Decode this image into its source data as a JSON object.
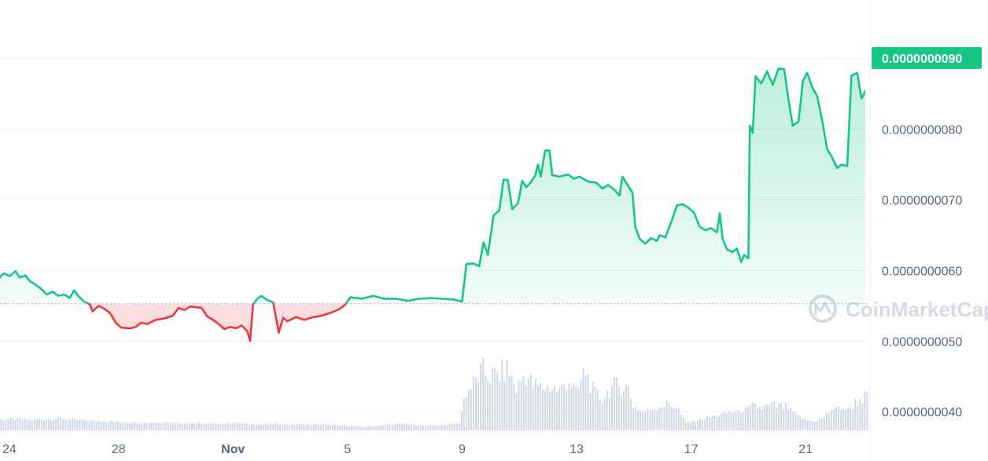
{
  "watermark": {
    "text": "CoinMarketCap",
    "icon": "coinmarketcap-logo-icon"
  },
  "colors": {
    "up": "#16c784",
    "down": "#ea3943",
    "label_bg": "#16c784",
    "grid": "#eff2f5",
    "volume": "#cfd6e4",
    "baseline": "#a6b0c3"
  },
  "chart_data": {
    "type": "line",
    "y_ticks": [
      "0.0000000040",
      "0.0000000050",
      "0.0000000060",
      "0.0000000070",
      "0.0000000080",
      "0.0000000090"
    ],
    "y_tick_values": [
      4e-09,
      5e-09,
      6e-09,
      7e-09,
      8e-09,
      9e-09
    ],
    "ylim": [
      3.88e-09,
      9.72e-09
    ],
    "x_ticks": [
      {
        "label": "24",
        "day": 0,
        "bold": false
      },
      {
        "label": "28",
        "day": 4,
        "bold": false
      },
      {
        "label": "Nov",
        "day": 8,
        "bold": true
      },
      {
        "label": "5",
        "day": 12,
        "bold": false
      },
      {
        "label": "9",
        "day": 16,
        "bold": false
      },
      {
        "label": "13",
        "day": 20,
        "bold": false
      },
      {
        "label": "17",
        "day": 24,
        "bold": false
      },
      {
        "label": "21",
        "day": 28,
        "bold": false
      }
    ],
    "baseline_value": 5.53e-09,
    "last_price_label": "0.0000000090",
    "last_price_value": 9.01e-09,
    "series": [
      {
        "values_by_day": [
          [
            -0.6,
            5.56e-09
          ],
          [
            -0.4,
            5.72e-09
          ],
          [
            -0.2,
            5.88e-09
          ],
          [
            0.0,
            5.96e-09
          ],
          [
            0.2,
            5.92e-09
          ],
          [
            0.4,
            5.99e-09
          ],
          [
            0.55,
            5.9e-09
          ],
          [
            0.75,
            5.93e-09
          ],
          [
            0.9,
            5.85e-09
          ],
          [
            1.1,
            5.8e-09
          ],
          [
            1.3,
            5.74e-09
          ],
          [
            1.5,
            5.66e-09
          ],
          [
            1.7,
            5.7e-09
          ],
          [
            1.9,
            5.64e-09
          ],
          [
            2.1,
            5.66e-09
          ],
          [
            2.3,
            5.61e-09
          ],
          [
            2.45,
            5.72e-09
          ],
          [
            2.6,
            5.64e-09
          ],
          [
            2.8,
            5.56e-09
          ],
          [
            3.0,
            5.52e-09
          ],
          [
            3.1,
            5.42e-09
          ],
          [
            3.3,
            5.5e-09
          ],
          [
            3.5,
            5.46e-09
          ],
          [
            3.7,
            5.4e-09
          ],
          [
            3.9,
            5.26e-09
          ],
          [
            4.1,
            5.19e-09
          ],
          [
            4.4,
            5.18e-09
          ],
          [
            4.6,
            5.2e-09
          ],
          [
            4.8,
            5.26e-09
          ],
          [
            5.0,
            5.24e-09
          ],
          [
            5.3,
            5.3e-09
          ],
          [
            5.6,
            5.32e-09
          ],
          [
            5.9,
            5.36e-09
          ],
          [
            6.1,
            5.47e-09
          ],
          [
            6.3,
            5.44e-09
          ],
          [
            6.5,
            5.49e-09
          ],
          [
            6.7,
            5.48e-09
          ],
          [
            6.9,
            5.47e-09
          ],
          [
            7.1,
            5.35e-09
          ],
          [
            7.3,
            5.3e-09
          ],
          [
            7.5,
            5.24e-09
          ],
          [
            7.7,
            5.17e-09
          ],
          [
            7.9,
            5.2e-09
          ],
          [
            8.1,
            5.18e-09
          ],
          [
            8.3,
            5.22e-09
          ],
          [
            8.5,
            5.14e-09
          ],
          [
            8.6,
            5e-09
          ],
          [
            8.7,
            5.52e-09
          ],
          [
            8.85,
            5.6e-09
          ],
          [
            9.0,
            5.64e-09
          ],
          [
            9.2,
            5.58e-09
          ],
          [
            9.4,
            5.55e-09
          ],
          [
            9.6,
            5.12e-09
          ],
          [
            9.75,
            5.33e-09
          ],
          [
            9.9,
            5.28e-09
          ],
          [
            10.2,
            5.34e-09
          ],
          [
            10.5,
            5.3e-09
          ],
          [
            10.8,
            5.34e-09
          ],
          [
            11.1,
            5.36e-09
          ],
          [
            11.4,
            5.4e-09
          ],
          [
            11.7,
            5.45e-09
          ],
          [
            11.9,
            5.51e-09
          ],
          [
            12.1,
            5.62e-09
          ],
          [
            12.5,
            5.6e-09
          ],
          [
            12.9,
            5.64e-09
          ],
          [
            13.3,
            5.6e-09
          ],
          [
            13.7,
            5.6e-09
          ],
          [
            14.1,
            5.57e-09
          ],
          [
            14.5,
            5.6e-09
          ],
          [
            14.9,
            5.61e-09
          ],
          [
            15.3,
            5.6e-09
          ],
          [
            15.7,
            5.59e-09
          ],
          [
            16.0,
            5.56e-09
          ],
          [
            16.15,
            6.09e-09
          ],
          [
            16.4,
            6.1e-09
          ],
          [
            16.6,
            6.06e-09
          ],
          [
            16.75,
            6.4e-09
          ],
          [
            16.9,
            6.22e-09
          ],
          [
            17.1,
            6.78e-09
          ],
          [
            17.3,
            6.85e-09
          ],
          [
            17.45,
            7.29e-09
          ],
          [
            17.6,
            7.28e-09
          ],
          [
            17.75,
            6.87e-09
          ],
          [
            17.95,
            6.95e-09
          ],
          [
            18.1,
            7.27e-09
          ],
          [
            18.25,
            7.18e-09
          ],
          [
            18.4,
            7.25e-09
          ],
          [
            18.55,
            7.34e-09
          ],
          [
            18.65,
            7.5e-09
          ],
          [
            18.75,
            7.33e-09
          ],
          [
            18.9,
            7.7e-09
          ],
          [
            19.05,
            7.7e-09
          ],
          [
            19.15,
            7.35e-09
          ],
          [
            19.4,
            7.33e-09
          ],
          [
            19.7,
            7.36e-09
          ],
          [
            19.9,
            7.3e-09
          ],
          [
            20.1,
            7.33e-09
          ],
          [
            20.4,
            7.26e-09
          ],
          [
            20.7,
            7.24e-09
          ],
          [
            20.9,
            7.16e-09
          ],
          [
            21.1,
            7.21e-09
          ],
          [
            21.3,
            7.15e-09
          ],
          [
            21.5,
            7.06e-09
          ],
          [
            21.6,
            7.33e-09
          ],
          [
            21.8,
            7.2e-09
          ],
          [
            21.95,
            7.1e-09
          ],
          [
            22.05,
            6.62e-09
          ],
          [
            22.2,
            6.45e-09
          ],
          [
            22.4,
            6.38e-09
          ],
          [
            22.6,
            6.46e-09
          ],
          [
            22.8,
            6.42e-09
          ],
          [
            22.9,
            6.5e-09
          ],
          [
            23.1,
            6.47e-09
          ],
          [
            23.3,
            6.68e-09
          ],
          [
            23.5,
            6.92e-09
          ],
          [
            23.7,
            6.94e-09
          ],
          [
            23.9,
            6.89e-09
          ],
          [
            24.1,
            6.82e-09
          ],
          [
            24.3,
            6.62e-09
          ],
          [
            24.5,
            6.57e-09
          ],
          [
            24.7,
            6.6e-09
          ],
          [
            24.9,
            6.54e-09
          ],
          [
            25.0,
            6.81e-09
          ],
          [
            25.1,
            6.45e-09
          ],
          [
            25.25,
            6.3e-09
          ],
          [
            25.45,
            6.26e-09
          ],
          [
            25.6,
            6.31e-09
          ],
          [
            25.75,
            6.12e-09
          ],
          [
            25.85,
            6.22e-09
          ],
          [
            26.0,
            6.17e-09
          ],
          [
            26.05,
            8.05e-09
          ],
          [
            26.15,
            7.95e-09
          ],
          [
            26.25,
            8.75e-09
          ],
          [
            26.45,
            8.65e-09
          ],
          [
            26.65,
            8.82e-09
          ],
          [
            26.85,
            8.63e-09
          ],
          [
            27.05,
            8.86e-09
          ],
          [
            27.25,
            8.85e-09
          ],
          [
            27.4,
            8.42e-09
          ],
          [
            27.55,
            8.05e-09
          ],
          [
            27.75,
            8.11e-09
          ],
          [
            27.9,
            8.68e-09
          ],
          [
            28.05,
            8.8e-09
          ],
          [
            28.25,
            8.58e-09
          ],
          [
            28.4,
            8.47e-09
          ],
          [
            28.6,
            8.08e-09
          ],
          [
            28.75,
            7.72e-09
          ],
          [
            28.9,
            7.62e-09
          ],
          [
            29.1,
            7.45e-09
          ],
          [
            29.25,
            7.5e-09
          ],
          [
            29.45,
            7.48e-09
          ],
          [
            29.6,
            8.76e-09
          ],
          [
            29.8,
            8.8e-09
          ],
          [
            29.95,
            8.44e-09
          ],
          [
            30.1,
            8.55e-09
          ],
          [
            30.3,
            8.7e-09
          ],
          [
            30.45,
            8.88e-09
          ],
          [
            30.6,
            8.93e-09
          ],
          [
            30.8,
            9.01e-09
          ],
          [
            30.95,
            9.03e-09
          ],
          [
            31.05,
            9.01e-09
          ]
        ]
      }
    ],
    "volume_by_day": [
      [
        -0.6,
        0.16
      ],
      [
        0.0,
        0.15
      ],
      [
        0.5,
        0.15
      ],
      [
        1.0,
        0.14
      ],
      [
        1.5,
        0.15
      ],
      [
        2.0,
        0.16
      ],
      [
        2.5,
        0.14
      ],
      [
        3.0,
        0.13
      ],
      [
        3.5,
        0.12
      ],
      [
        4.0,
        0.11
      ],
      [
        4.5,
        0.11
      ],
      [
        5.0,
        0.1
      ],
      [
        5.5,
        0.11
      ],
      [
        6.0,
        0.1
      ],
      [
        6.5,
        0.1
      ],
      [
        7.0,
        0.09
      ],
      [
        7.5,
        0.09
      ],
      [
        8.0,
        0.1
      ],
      [
        8.5,
        0.09
      ],
      [
        9.0,
        0.08
      ],
      [
        9.5,
        0.09
      ],
      [
        10.0,
        0.08
      ],
      [
        10.5,
        0.08
      ],
      [
        11.0,
        0.08
      ],
      [
        11.5,
        0.07
      ],
      [
        12.0,
        0.06
      ],
      [
        12.5,
        0.05
      ],
      [
        13.0,
        0.06
      ],
      [
        13.5,
        0.08
      ],
      [
        14.0,
        0.09
      ],
      [
        14.5,
        0.06
      ],
      [
        15.0,
        0.07
      ],
      [
        15.5,
        0.08
      ],
      [
        15.9,
        0.1
      ],
      [
        16.1,
        0.48
      ],
      [
        16.4,
        0.62
      ],
      [
        16.7,
        0.8
      ],
      [
        17.0,
        0.72
      ],
      [
        17.3,
        0.75
      ],
      [
        17.6,
        0.82
      ],
      [
        17.9,
        0.55
      ],
      [
        18.2,
        0.76
      ],
      [
        18.5,
        0.6
      ],
      [
        18.8,
        0.57
      ],
      [
        19.1,
        0.58
      ],
      [
        19.4,
        0.52
      ],
      [
        19.7,
        0.7
      ],
      [
        20.0,
        0.48
      ],
      [
        20.3,
        0.82
      ],
      [
        20.6,
        0.5
      ],
      [
        20.9,
        0.42
      ],
      [
        21.2,
        0.58
      ],
      [
        21.5,
        0.6
      ],
      [
        21.8,
        0.58
      ],
      [
        22.0,
        0.32
      ],
      [
        22.3,
        0.25
      ],
      [
        22.6,
        0.28
      ],
      [
        22.9,
        0.33
      ],
      [
        23.2,
        0.35
      ],
      [
        23.5,
        0.33
      ],
      [
        23.8,
        0.1
      ],
      [
        24.1,
        0.12
      ],
      [
        24.4,
        0.15
      ],
      [
        24.7,
        0.18
      ],
      [
        25.0,
        0.2
      ],
      [
        25.3,
        0.25
      ],
      [
        25.6,
        0.24
      ],
      [
        25.9,
        0.28
      ],
      [
        26.2,
        0.32
      ],
      [
        26.5,
        0.3
      ],
      [
        26.8,
        0.33
      ],
      [
        27.1,
        0.32
      ],
      [
        27.4,
        0.3
      ],
      [
        27.7,
        0.2
      ],
      [
        28.0,
        0.14
      ],
      [
        28.3,
        0.12
      ],
      [
        28.6,
        0.16
      ],
      [
        28.9,
        0.28
      ],
      [
        29.2,
        0.3
      ],
      [
        29.5,
        0.28
      ],
      [
        29.8,
        0.4
      ],
      [
        30.1,
        0.45
      ],
      [
        30.4,
        0.46
      ],
      [
        30.7,
        0.44
      ],
      [
        31.05,
        0.42
      ]
    ]
  }
}
